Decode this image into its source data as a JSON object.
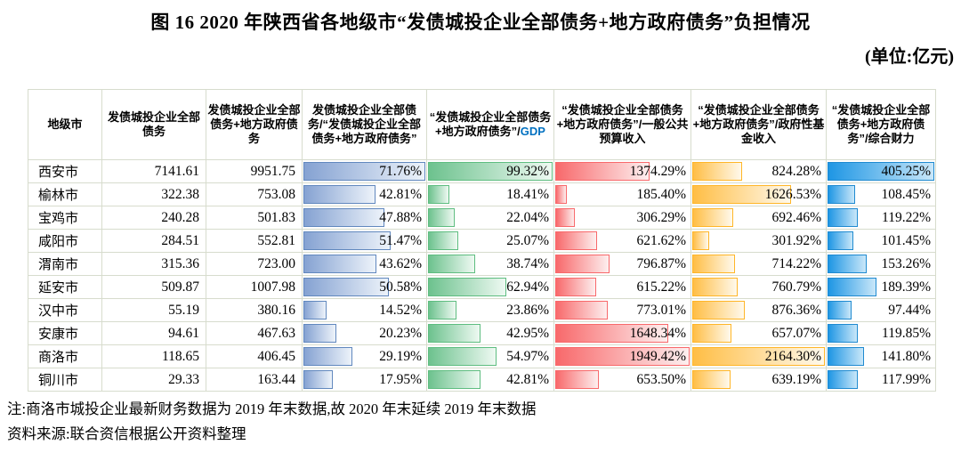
{
  "figure": {
    "title": "图 16  2020 年陕西省各地级市“发债城投企业全部债务+地方政府债务”负担情况",
    "unit_label": "(单位:亿元)"
  },
  "chart_data": {
    "type": "table",
    "title": "2020 年陕西省各地级市“发债城投企业全部债务+地方政府债务”负担情况",
    "unit": "亿元",
    "columns": [
      "地级市",
      "发债城投企业全部债务",
      "发债城投企业全部债务+地方政府债务",
      "发债城投企业全部债务/“发债城投企业全部债务+地方政府债务”",
      {
        "prefix": "“发债城投企业全部债务+地方政府债务”/",
        "highlight": "GDP"
      },
      "“发债城投企业全部债务+地方政府债务”/一般公共预算收入",
      "“发债城投企业全部债务+地方政府债务”/政府性基金收入",
      "“发债城投企业全部债务+地方政府债务”/综合财力"
    ],
    "bar_columns": [
      {
        "key": "ratio",
        "max": 71.76,
        "color_name": "blue"
      },
      {
        "key": "gdp",
        "max": 99.32,
        "color_name": "green"
      },
      {
        "key": "budget",
        "max": 1949.42,
        "color_name": "red"
      },
      {
        "key": "fund",
        "max": 2164.3,
        "color_name": "orange"
      },
      {
        "key": "fiscal",
        "max": 405.25,
        "color_name": "azure"
      }
    ],
    "colors": {
      "blue": "#638EC6",
      "green": "#63C384",
      "red": "#F8696B",
      "orange": "#FFB628",
      "azure": "#1E96E4",
      "gdp_text": "#0070C0"
    },
    "rows": [
      {
        "city": "西安市",
        "debt": "7141.61",
        "total": "9951.75",
        "ratio": 71.76,
        "gdp": 99.32,
        "budget": 1374.29,
        "fund": 824.28,
        "fiscal": 405.25
      },
      {
        "city": "榆林市",
        "debt": "322.38",
        "total": "753.08",
        "ratio": 42.81,
        "gdp": 18.41,
        "budget": 185.4,
        "fund": 1626.53,
        "fiscal": 108.45
      },
      {
        "city": "宝鸡市",
        "debt": "240.28",
        "total": "501.83",
        "ratio": 47.88,
        "gdp": 22.04,
        "budget": 306.29,
        "fund": 692.46,
        "fiscal": 119.22
      },
      {
        "city": "咸阳市",
        "debt": "284.51",
        "total": "552.81",
        "ratio": 51.47,
        "gdp": 25.07,
        "budget": 621.62,
        "fund": 301.92,
        "fiscal": 101.45
      },
      {
        "city": "渭南市",
        "debt": "315.36",
        "total": "723.00",
        "ratio": 43.62,
        "gdp": 38.74,
        "budget": 796.87,
        "fund": 714.22,
        "fiscal": 153.26
      },
      {
        "city": "延安市",
        "debt": "509.87",
        "total": "1007.98",
        "ratio": 50.58,
        "gdp": 62.94,
        "budget": 615.22,
        "fund": 760.79,
        "fiscal": 189.39
      },
      {
        "city": "汉中市",
        "debt": "55.19",
        "total": "380.16",
        "ratio": 14.52,
        "gdp": 23.86,
        "budget": 773.01,
        "fund": 876.36,
        "fiscal": 97.44
      },
      {
        "city": "安康市",
        "debt": "94.61",
        "total": "467.63",
        "ratio": 20.23,
        "gdp": 42.95,
        "budget": 1648.34,
        "fund": 657.07,
        "fiscal": 119.85
      },
      {
        "city": "商洛市",
        "debt": "118.65",
        "total": "406.45",
        "ratio": 29.19,
        "gdp": 54.97,
        "budget": 1949.42,
        "fund": 2164.3,
        "fiscal": 141.8
      },
      {
        "city": "铜川市",
        "debt": "29.33",
        "total": "163.44",
        "ratio": 17.95,
        "gdp": 42.81,
        "budget": 653.5,
        "fund": 639.19,
        "fiscal": 117.99
      }
    ]
  },
  "notes": [
    "注:商洛市城投企业最新财务数据为 2019 年末数据,故 2020 年末延续 2019 年末数据",
    "资料来源:联合资信根据公开资料整理"
  ]
}
